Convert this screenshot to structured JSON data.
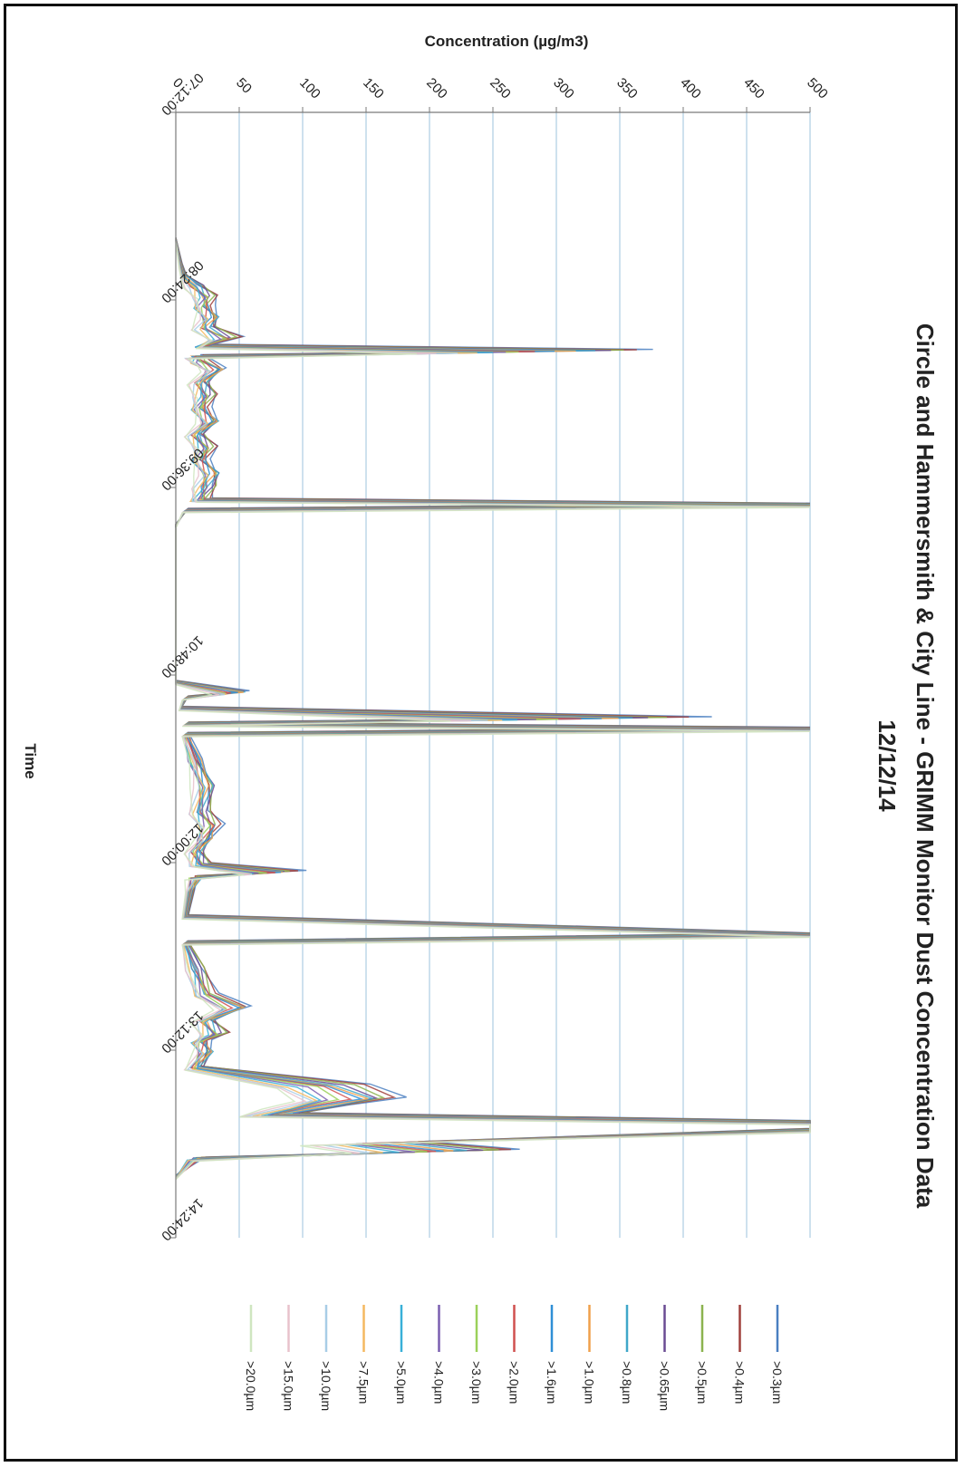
{
  "chart_data": {
    "type": "line",
    "title": "Circle and Hammersmith & City Line - GRIMM Monitor Dust Concentration Data",
    "subtitle": "12/12/14",
    "xlabel": "Time",
    "ylabel": "Concentration (µg/m3)",
    "xlim": [
      "07:12:00",
      "14:24:00"
    ],
    "ylim": [
      0,
      500
    ],
    "x_ticks": [
      "07:12:00",
      "08:24:00",
      "09:36:00",
      "10:48:00",
      "12:00:00",
      "13:12:00",
      "14:24:00"
    ],
    "y_ticks": [
      0,
      50,
      100,
      150,
      200,
      250,
      300,
      350,
      400,
      450,
      500
    ],
    "grid": true,
    "legend_position": "bottom",
    "orientation": "rotated-90-clockwise",
    "series": [
      {
        "name": ">0.3µm",
        "color": "#4a7fc1"
      },
      {
        "name": ">0.4µm",
        "color": "#a0403c"
      },
      {
        "name": ">0.5µm",
        "color": "#8cb34f"
      },
      {
        "name": ">0.65µm",
        "color": "#6a4c93"
      },
      {
        "name": ">0.8µm",
        "color": "#3fa7c9"
      },
      {
        "name": ">1.0µm",
        "color": "#f0a04b"
      },
      {
        "name": ">1.6µm",
        "color": "#2f8fd6"
      },
      {
        "name": ">2.0µm",
        "color": "#d0504f"
      },
      {
        "name": ">3.0µm",
        "color": "#9bd05a"
      },
      {
        "name": ">4.0µm",
        "color": "#7a5fb0"
      },
      {
        "name": ">5.0µm",
        "color": "#39b0d8"
      },
      {
        "name": ">7.5µm",
        "color": "#f4b860"
      },
      {
        "name": ">10.0µm",
        "color": "#a8cde6"
      },
      {
        "name": ">15.0µm",
        "color": "#e8c2cc"
      },
      {
        "name": ">20.0µm",
        "color": "#cfe6c0"
      }
    ],
    "profile": [
      [
        "08:00:00",
        0
      ],
      [
        "08:10:00",
        5
      ],
      [
        "08:14:00",
        8
      ],
      [
        "08:18:00",
        20
      ],
      [
        "08:22:00",
        30
      ],
      [
        "08:26:00",
        28
      ],
      [
        "08:30:00",
        35
      ],
      [
        "08:34:00",
        30
      ],
      [
        "08:38:00",
        50
      ],
      [
        "08:41:00",
        28
      ],
      [
        "08:43:00",
        380
      ],
      [
        "08:45:00",
        20
      ],
      [
        "08:47:00",
        25
      ],
      [
        "08:50:00",
        40
      ],
      [
        "08:55:00",
        25
      ],
      [
        "09:00:00",
        30
      ],
      [
        "09:05:00",
        25
      ],
      [
        "09:10:00",
        35
      ],
      [
        "09:15:00",
        20
      ],
      [
        "09:20:00",
        30
      ],
      [
        "09:25:00",
        25
      ],
      [
        "09:30:00",
        35
      ],
      [
        "09:35:00",
        30
      ],
      [
        "09:40:00",
        25
      ],
      [
        "09:42:00",
        500
      ],
      [
        "09:44:00",
        10
      ],
      [
        "09:50:00",
        0
      ],
      [
        "10:50:00",
        0
      ],
      [
        "10:54:00",
        60
      ],
      [
        "10:56:00",
        10
      ],
      [
        "11:00:00",
        5
      ],
      [
        "11:04:00",
        420
      ],
      [
        "11:06:00",
        10
      ],
      [
        "11:08:00",
        500
      ],
      [
        "11:10:00",
        10
      ],
      [
        "11:20:00",
        20
      ],
      [
        "11:30:00",
        30
      ],
      [
        "11:40:00",
        25
      ],
      [
        "11:45:00",
        35
      ],
      [
        "11:50:00",
        30
      ],
      [
        "11:55:00",
        20
      ],
      [
        "12:00:00",
        25
      ],
      [
        "12:03:00",
        100
      ],
      [
        "12:05:00",
        20
      ],
      [
        "12:10:00",
        15
      ],
      [
        "12:20:00",
        10
      ],
      [
        "12:27:00",
        500
      ],
      [
        "12:30:00",
        10
      ],
      [
        "12:40:00",
        20
      ],
      [
        "12:50:00",
        30
      ],
      [
        "12:55:00",
        60
      ],
      [
        "13:00:00",
        30
      ],
      [
        "13:05:00",
        40
      ],
      [
        "13:08:00",
        25
      ],
      [
        "13:12:00",
        30
      ],
      [
        "13:18:00",
        20
      ],
      [
        "13:25:00",
        150
      ],
      [
        "13:30:00",
        180
      ],
      [
        "13:33:00",
        140
      ],
      [
        "13:36:00",
        100
      ],
      [
        "13:39:00",
        500
      ],
      [
        "13:42:00",
        500
      ],
      [
        "13:47:00",
        200
      ],
      [
        "13:50:00",
        270
      ],
      [
        "13:53:00",
        20
      ],
      [
        "14:00:00",
        0
      ]
    ]
  }
}
